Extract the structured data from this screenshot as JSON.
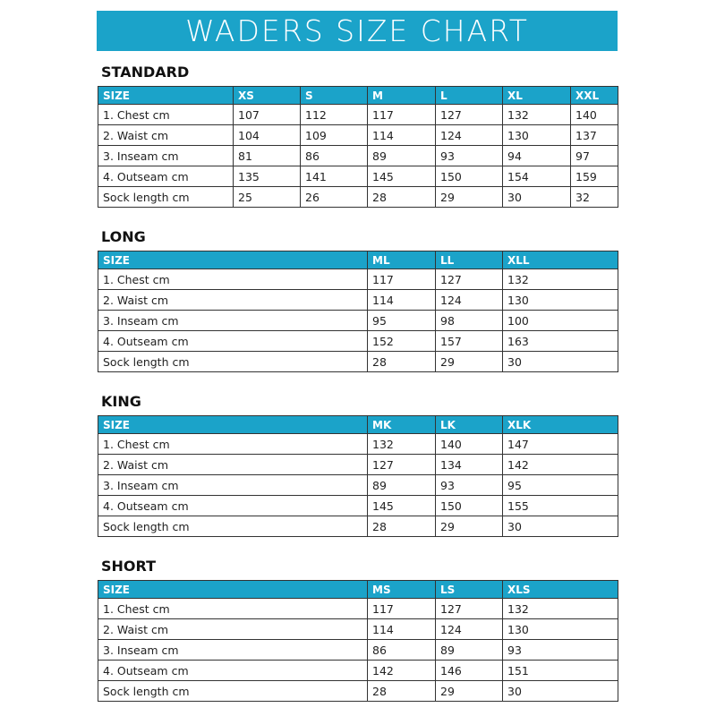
{
  "header": {
    "title": "WADERS SIZE CHART"
  },
  "tables": [
    {
      "title": "STANDARD",
      "columns": [
        "SIZE",
        "XS",
        "S",
        "M",
        "L",
        "XL",
        "XXL"
      ],
      "rows": [
        [
          "1. Chest cm",
          107,
          112,
          117,
          127,
          132,
          140
        ],
        [
          "2. Waist cm",
          104,
          109,
          114,
          124,
          130,
          137
        ],
        [
          "3. Inseam cm",
          81,
          86,
          89,
          93,
          94,
          97
        ],
        [
          "4. Outseam cm",
          135,
          141,
          145,
          150,
          154,
          159
        ],
        [
          "Sock length cm",
          25,
          26,
          28,
          29,
          30,
          32
        ]
      ]
    },
    {
      "title": "LONG",
      "columns": [
        "SIZE",
        "ML",
        "LL",
        "XLL"
      ],
      "rows": [
        [
          "1. Chest cm",
          117,
          127,
          132
        ],
        [
          "2. Waist cm",
          114,
          124,
          130
        ],
        [
          "3. Inseam cm",
          95,
          98,
          100
        ],
        [
          "4. Outseam cm",
          152,
          157,
          163
        ],
        [
          "Sock length cm",
          28,
          29,
          30
        ]
      ]
    },
    {
      "title": "KING",
      "columns": [
        "SIZE",
        "MK",
        "LK",
        "XLK"
      ],
      "rows": [
        [
          "1. Chest cm",
          132,
          140,
          147
        ],
        [
          "2. Waist cm",
          127,
          134,
          142
        ],
        [
          "3. Inseam cm",
          89,
          93,
          95
        ],
        [
          "4. Outseam cm",
          145,
          150,
          155
        ],
        [
          "Sock length cm",
          28,
          29,
          30
        ]
      ]
    },
    {
      "title": "SHORT",
      "columns": [
        "SIZE",
        "MS",
        "LS",
        "XLS"
      ],
      "rows": [
        [
          "1. Chest cm",
          117,
          127,
          132
        ],
        [
          "2. Waist cm",
          114,
          124,
          130
        ],
        [
          "3. Inseam cm",
          86,
          89,
          93
        ],
        [
          "4. Outseam cm",
          142,
          146,
          151
        ],
        [
          "Sock length cm",
          28,
          29,
          30
        ]
      ]
    }
  ]
}
